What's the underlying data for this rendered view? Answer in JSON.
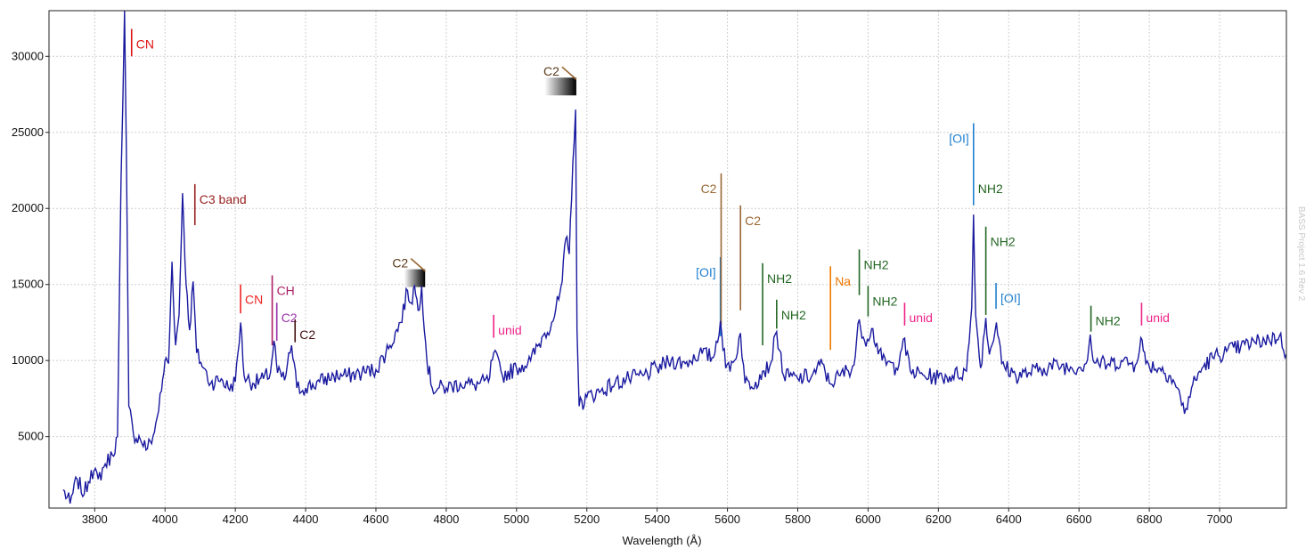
{
  "chart_data": {
    "type": "line",
    "title": "",
    "xlabel": "Wavelength (Å)",
    "ylabel": "",
    "xlim": [
      3670,
      7190
    ],
    "ylim": [
      300,
      33000
    ],
    "grid": true,
    "x_ticks": [
      "3800",
      "4000",
      "4200",
      "4400",
      "4600",
      "4800",
      "5000",
      "5200",
      "5400",
      "5600",
      "5800",
      "6000",
      "6200",
      "6400",
      "6600",
      "6800",
      "7000"
    ],
    "y_ticks": [
      "5000",
      "10000",
      "15000",
      "20000",
      "25000",
      "30000"
    ],
    "series": [
      {
        "color": "#1a1aa0",
        "anchors": [
          [
            3710,
            1500
          ],
          [
            3730,
            600
          ],
          [
            3750,
            2200
          ],
          [
            3770,
            1200
          ],
          [
            3790,
            2800
          ],
          [
            3810,
            2200
          ],
          [
            3830,
            3200
          ],
          [
            3850,
            3800
          ],
          [
            3865,
            5000
          ],
          [
            3875,
            22000
          ],
          [
            3880,
            27000
          ],
          [
            3885,
            33000
          ],
          [
            3890,
            24000
          ],
          [
            3897,
            7000
          ],
          [
            3910,
            5200
          ],
          [
            3930,
            4800
          ],
          [
            3950,
            4200
          ],
          [
            3970,
            5300
          ],
          [
            3990,
            8000
          ],
          [
            4000,
            10000
          ],
          [
            4010,
            9800
          ],
          [
            4020,
            16500
          ],
          [
            4030,
            11000
          ],
          [
            4040,
            13000
          ],
          [
            4050,
            21000
          ],
          [
            4060,
            15000
          ],
          [
            4070,
            12000
          ],
          [
            4080,
            15200
          ],
          [
            4090,
            10500
          ],
          [
            4110,
            9500
          ],
          [
            4130,
            8500
          ],
          [
            4160,
            8800
          ],
          [
            4180,
            8200
          ],
          [
            4200,
            8600
          ],
          [
            4215,
            12500
          ],
          [
            4225,
            9000
          ],
          [
            4250,
            8500
          ],
          [
            4280,
            8800
          ],
          [
            4300,
            9200
          ],
          [
            4310,
            11300
          ],
          [
            4320,
            9200
          ],
          [
            4340,
            8700
          ],
          [
            4360,
            11000
          ],
          [
            4375,
            8200
          ],
          [
            4400,
            8200
          ],
          [
            4440,
            8600
          ],
          [
            4480,
            9000
          ],
          [
            4520,
            9000
          ],
          [
            4560,
            9200
          ],
          [
            4600,
            9400
          ],
          [
            4640,
            11000
          ],
          [
            4670,
            12500
          ],
          [
            4690,
            14600
          ],
          [
            4700,
            13800
          ],
          [
            4710,
            14900
          ],
          [
            4720,
            13300
          ],
          [
            4730,
            14900
          ],
          [
            4745,
            10000
          ],
          [
            4760,
            8200
          ],
          [
            4800,
            8200
          ],
          [
            4840,
            8500
          ],
          [
            4880,
            8400
          ],
          [
            4920,
            8600
          ],
          [
            4935,
            10500
          ],
          [
            4960,
            9000
          ],
          [
            5000,
            9500
          ],
          [
            5040,
            10000
          ],
          [
            5080,
            11800
          ],
          [
            5100,
            12500
          ],
          [
            5120,
            14000
          ],
          [
            5130,
            15200
          ],
          [
            5140,
            18000
          ],
          [
            5150,
            17000
          ],
          [
            5160,
            23000
          ],
          [
            5168,
            26500
          ],
          [
            5172,
            12000
          ],
          [
            5178,
            7000
          ],
          [
            5200,
            7600
          ],
          [
            5240,
            8000
          ],
          [
            5280,
            8500
          ],
          [
            5320,
            8800
          ],
          [
            5360,
            9000
          ],
          [
            5400,
            9500
          ],
          [
            5440,
            10000
          ],
          [
            5480,
            9800
          ],
          [
            5520,
            10500
          ],
          [
            5560,
            10200
          ],
          [
            5580,
            12600
          ],
          [
            5595,
            9500
          ],
          [
            5620,
            10000
          ],
          [
            5637,
            11800
          ],
          [
            5650,
            8500
          ],
          [
            5680,
            8600
          ],
          [
            5700,
            9300
          ],
          [
            5720,
            9600
          ],
          [
            5740,
            11900
          ],
          [
            5760,
            9000
          ],
          [
            5800,
            8800
          ],
          [
            5840,
            9000
          ],
          [
            5870,
            9800
          ],
          [
            5890,
            8500
          ],
          [
            5920,
            9000
          ],
          [
            5960,
            9700
          ],
          [
            5975,
            12700
          ],
          [
            5990,
            11300
          ],
          [
            6010,
            12100
          ],
          [
            6040,
            10000
          ],
          [
            6080,
            9500
          ],
          [
            6100,
            11400
          ],
          [
            6120,
            9300
          ],
          [
            6160,
            9000
          ],
          [
            6200,
            8900
          ],
          [
            6240,
            9000
          ],
          [
            6280,
            9300
          ],
          [
            6295,
            13500
          ],
          [
            6300,
            19600
          ],
          [
            6306,
            13000
          ],
          [
            6320,
            9500
          ],
          [
            6335,
            12800
          ],
          [
            6345,
            10400
          ],
          [
            6365,
            12500
          ],
          [
            6380,
            9800
          ],
          [
            6420,
            9000
          ],
          [
            6460,
            9200
          ],
          [
            6500,
            9500
          ],
          [
            6540,
            9700
          ],
          [
            6580,
            9500
          ],
          [
            6620,
            9800
          ],
          [
            6632,
            11700
          ],
          [
            6640,
            10000
          ],
          [
            6680,
            9700
          ],
          [
            6720,
            10000
          ],
          [
            6760,
            9700
          ],
          [
            6776,
            11500
          ],
          [
            6790,
            9800
          ],
          [
            6830,
            9500
          ],
          [
            6860,
            9000
          ],
          [
            6880,
            8200
          ],
          [
            6900,
            6500
          ],
          [
            6920,
            8200
          ],
          [
            6950,
            9500
          ],
          [
            6980,
            10200
          ],
          [
            7020,
            10600
          ],
          [
            7060,
            10900
          ],
          [
            7100,
            11200
          ],
          [
            7140,
            11400
          ],
          [
            7170,
            11600
          ],
          [
            7190,
            10400
          ]
        ]
      }
    ],
    "annotations": [
      {
        "text": "CN",
        "color": "#dd1111",
        "x": 3905,
        "y_top": 31800,
        "y_bot": 30000,
        "side": "right"
      },
      {
        "text": "C3 band",
        "color": "#992222",
        "x": 4085,
        "y_top": 21600,
        "y_bot": 18900,
        "side": "right"
      },
      {
        "text": "CN",
        "color": "#ee2222",
        "x": 4215,
        "y_top": 15000,
        "y_bot": 13100,
        "side": "right"
      },
      {
        "text": "CH",
        "color": "#aa2266",
        "x": 4305,
        "y_top": 15600,
        "y_bot": 11000,
        "side": "right"
      },
      {
        "text": "C2",
        "color": "#9933aa",
        "x": 4318,
        "y_top": 13800,
        "y_bot": 11300,
        "side": "right"
      },
      {
        "text": "C2",
        "color": "#441111",
        "x": 4370,
        "y_top": 12700,
        "y_bot": 11200,
        "side": "right"
      },
      {
        "text": "unid",
        "color": "#ee2288",
        "x": 4935,
        "y_top": 13000,
        "y_bot": 11500,
        "side": "right"
      },
      {
        "text": "[OI]",
        "color": "#1f7fd0",
        "x": 5580,
        "y_top": 16800,
        "y_bot": 11600,
        "side": "left"
      },
      {
        "text": "C2",
        "color": "#996633",
        "x": 5582,
        "y_top": 22300,
        "y_bot": 12300,
        "side": "left"
      },
      {
        "text": "C2",
        "color": "#996633",
        "x": 5637,
        "y_top": 20200,
        "y_bot": 13300,
        "side": "right"
      },
      {
        "text": "NH2",
        "color": "#226622",
        "x": 5700,
        "y_top": 16400,
        "y_bot": 11000,
        "side": "right"
      },
      {
        "text": "NH2",
        "color": "#226622",
        "x": 5740,
        "y_top": 14000,
        "y_bot": 12100,
        "side": "right"
      },
      {
        "text": "Na",
        "color": "#ee7700",
        "x": 5893,
        "y_top": 16200,
        "y_bot": 10700,
        "side": "right"
      },
      {
        "text": "NH2",
        "color": "#226622",
        "x": 5975,
        "y_top": 17300,
        "y_bot": 14300,
        "side": "right"
      },
      {
        "text": "NH2",
        "color": "#226622",
        "x": 6000,
        "y_top": 14900,
        "y_bot": 12900,
        "side": "right"
      },
      {
        "text": "unid",
        "color": "#ee2288",
        "x": 6104,
        "y_top": 13800,
        "y_bot": 12300,
        "side": "right"
      },
      {
        "text": "[OI]",
        "color": "#1f7fd0",
        "x": 6300,
        "y_top": 25600,
        "y_bot": 20200,
        "side": "left"
      },
      {
        "text": "NH2",
        "color": "#226622",
        "x": 6300,
        "y_top": 21000,
        "y_bot": 21000,
        "side": "right",
        "noline": true
      },
      {
        "text": "NH2",
        "color": "#226622",
        "x": 6335,
        "y_top": 18800,
        "y_bot": 13000,
        "side": "right"
      },
      {
        "text": "[OI]",
        "color": "#1f7fd0",
        "x": 6364,
        "y_top": 15100,
        "y_bot": 13400,
        "side": "right"
      },
      {
        "text": "NH2",
        "color": "#226622",
        "x": 6634,
        "y_top": 13600,
        "y_bot": 11900,
        "side": "right"
      },
      {
        "text": "unid",
        "color": "#ee2288",
        "x": 6778,
        "y_top": 13800,
        "y_bot": 12300,
        "side": "right"
      }
    ],
    "band_markers": [
      {
        "text": "C2",
        "color": "#996633",
        "x_start": 5080,
        "x_end": 5170,
        "y": 28600
      },
      {
        "text": "C2",
        "color": "#996633",
        "x_start": 4680,
        "x_end": 4740,
        "y": 16000
      }
    ],
    "watermark": "BASS Project 1.6 Rev 2"
  }
}
